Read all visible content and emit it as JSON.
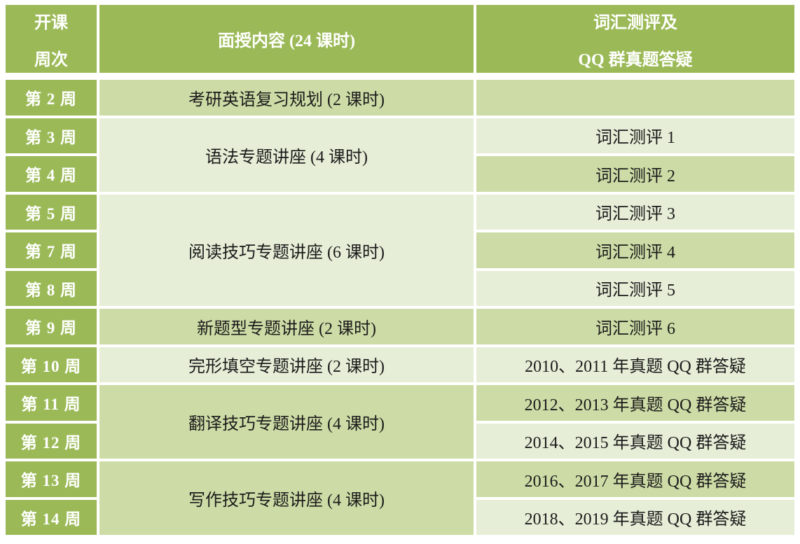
{
  "colors": {
    "header_green": "#9BBA57",
    "band_medium": "#CDDCA6",
    "band_light": "#E6EED7",
    "text_dark": "#1B1B1B",
    "text_white": "#FFFFFF",
    "page_bg": "#FFFFFF"
  },
  "table": {
    "header": {
      "week_line1": "开课",
      "week_line2": "周次",
      "content": "面授内容 (24 课时)",
      "assessment_line1": "词汇测评及",
      "assessment_line2": "QQ 群真题答疑"
    },
    "weeks": [
      "第 2 周",
      "第 3 周",
      "第 4 周",
      "第 5 周",
      "第 7 周",
      "第 8 周",
      "第 9 周",
      "第 10 周",
      "第 11 周",
      "第 12 周",
      "第 13 周",
      "第 14 周"
    ],
    "content_cells": [
      "考研英语复习规划 (2 课时)",
      "语法专题讲座 (4 课时)",
      "阅读技巧专题讲座 (6 课时)",
      "新题型专题讲座 (2 课时)",
      "完形填空专题讲座 (2 课时)",
      "翻译技巧专题讲座 (4 课时)",
      "写作技巧专题讲座 (4 课时)"
    ],
    "assessment_cells": [
      "",
      "词汇测评 1",
      "词汇测评 2",
      "词汇测评 3",
      "词汇测评 4",
      "词汇测评 5",
      "词汇测评 6",
      "2010、2011 年真题 QQ 群答疑",
      "2012、2013 年真题 QQ 群答疑",
      "2014、2015 年真题 QQ 群答疑",
      "2016、2017 年真题 QQ 群答疑",
      "2018、2019 年真题 QQ 群答疑"
    ]
  }
}
